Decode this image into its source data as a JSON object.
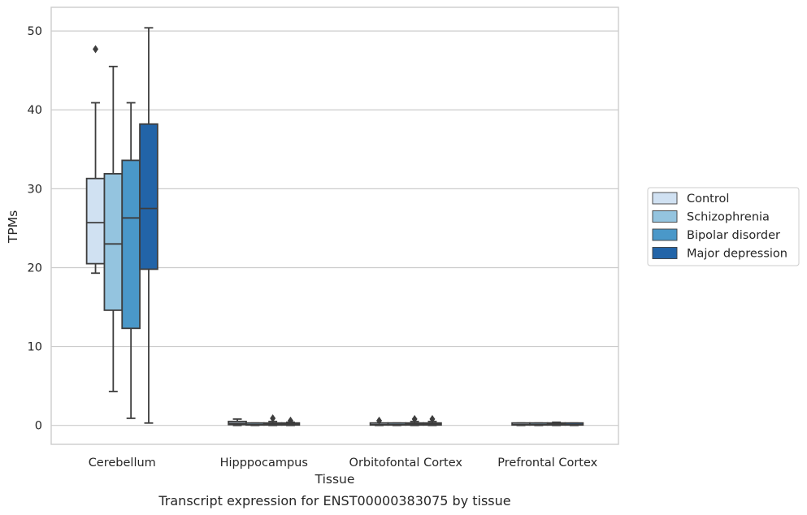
{
  "caption": "Transcript expression for ENST00000383075 by tissue",
  "chart_data": {
    "type": "box",
    "title": "",
    "xlabel": "Tissue",
    "ylabel": "TPMs",
    "ylim": [
      -2.4,
      53
    ],
    "yticks": [
      0,
      10,
      20,
      30,
      40,
      50
    ],
    "grid": "horizontal",
    "legend_position": "right",
    "categories": [
      "Cerebellum",
      "Hipppocampus",
      "Orbitofontal Cortex",
      "Prefrontal Cortex"
    ],
    "series": [
      {
        "name": "Control",
        "color": "#d0e1f2",
        "boxes": [
          {
            "whislo": 19.3,
            "q1": 20.5,
            "med": 25.7,
            "q3": 31.3,
            "whishi": 40.9,
            "fliers": [
              47.7
            ]
          },
          {
            "whislo": 0.0,
            "q1": 0.1,
            "med": 0.25,
            "q3": 0.5,
            "whishi": 0.8,
            "fliers": []
          },
          {
            "whislo": 0.0,
            "q1": 0.05,
            "med": 0.1,
            "q3": 0.2,
            "whishi": 0.3,
            "fliers": [
              0.6
            ]
          },
          {
            "whislo": 0.0,
            "q1": 0.05,
            "med": 0.1,
            "q3": 0.2,
            "whishi": 0.3,
            "fliers": []
          }
        ]
      },
      {
        "name": "Schizophrenia",
        "color": "#94c4df",
        "boxes": [
          {
            "whislo": 4.3,
            "q1": 14.6,
            "med": 23.0,
            "q3": 31.9,
            "whishi": 45.5,
            "fliers": []
          },
          {
            "whislo": 0.0,
            "q1": 0.05,
            "med": 0.1,
            "q3": 0.2,
            "whishi": 0.3,
            "fliers": []
          },
          {
            "whislo": 0.0,
            "q1": 0.05,
            "med": 0.1,
            "q3": 0.2,
            "whishi": 0.3,
            "fliers": []
          },
          {
            "whislo": 0.0,
            "q1": 0.05,
            "med": 0.1,
            "q3": 0.2,
            "whishi": 0.3,
            "fliers": []
          }
        ]
      },
      {
        "name": "Bipolar disorder",
        "color": "#4a98c9",
        "boxes": [
          {
            "whislo": 0.9,
            "q1": 12.3,
            "med": 26.3,
            "q3": 33.6,
            "whishi": 40.9,
            "fliers": []
          },
          {
            "whislo": 0.0,
            "q1": 0.05,
            "med": 0.15,
            "q3": 0.3,
            "whishi": 0.5,
            "fliers": [
              0.9
            ]
          },
          {
            "whislo": 0.0,
            "q1": 0.05,
            "med": 0.15,
            "q3": 0.3,
            "whishi": 0.5,
            "fliers": [
              0.8
            ]
          },
          {
            "whislo": 0.0,
            "q1": 0.05,
            "med": 0.15,
            "q3": 0.3,
            "whishi": 0.4,
            "fliers": []
          }
        ]
      },
      {
        "name": "Major depression",
        "color": "#2264a8",
        "boxes": [
          {
            "whislo": 0.3,
            "q1": 19.8,
            "med": 27.5,
            "q3": 38.2,
            "whishi": 50.4,
            "fliers": []
          },
          {
            "whislo": 0.0,
            "q1": 0.05,
            "med": 0.15,
            "q3": 0.3,
            "whishi": 0.4,
            "fliers": [
              0.6
            ]
          },
          {
            "whislo": 0.0,
            "q1": 0.05,
            "med": 0.15,
            "q3": 0.3,
            "whishi": 0.5,
            "fliers": [
              0.8
            ]
          },
          {
            "whislo": 0.0,
            "q1": 0.05,
            "med": 0.1,
            "q3": 0.2,
            "whishi": 0.3,
            "fliers": []
          }
        ]
      }
    ]
  }
}
